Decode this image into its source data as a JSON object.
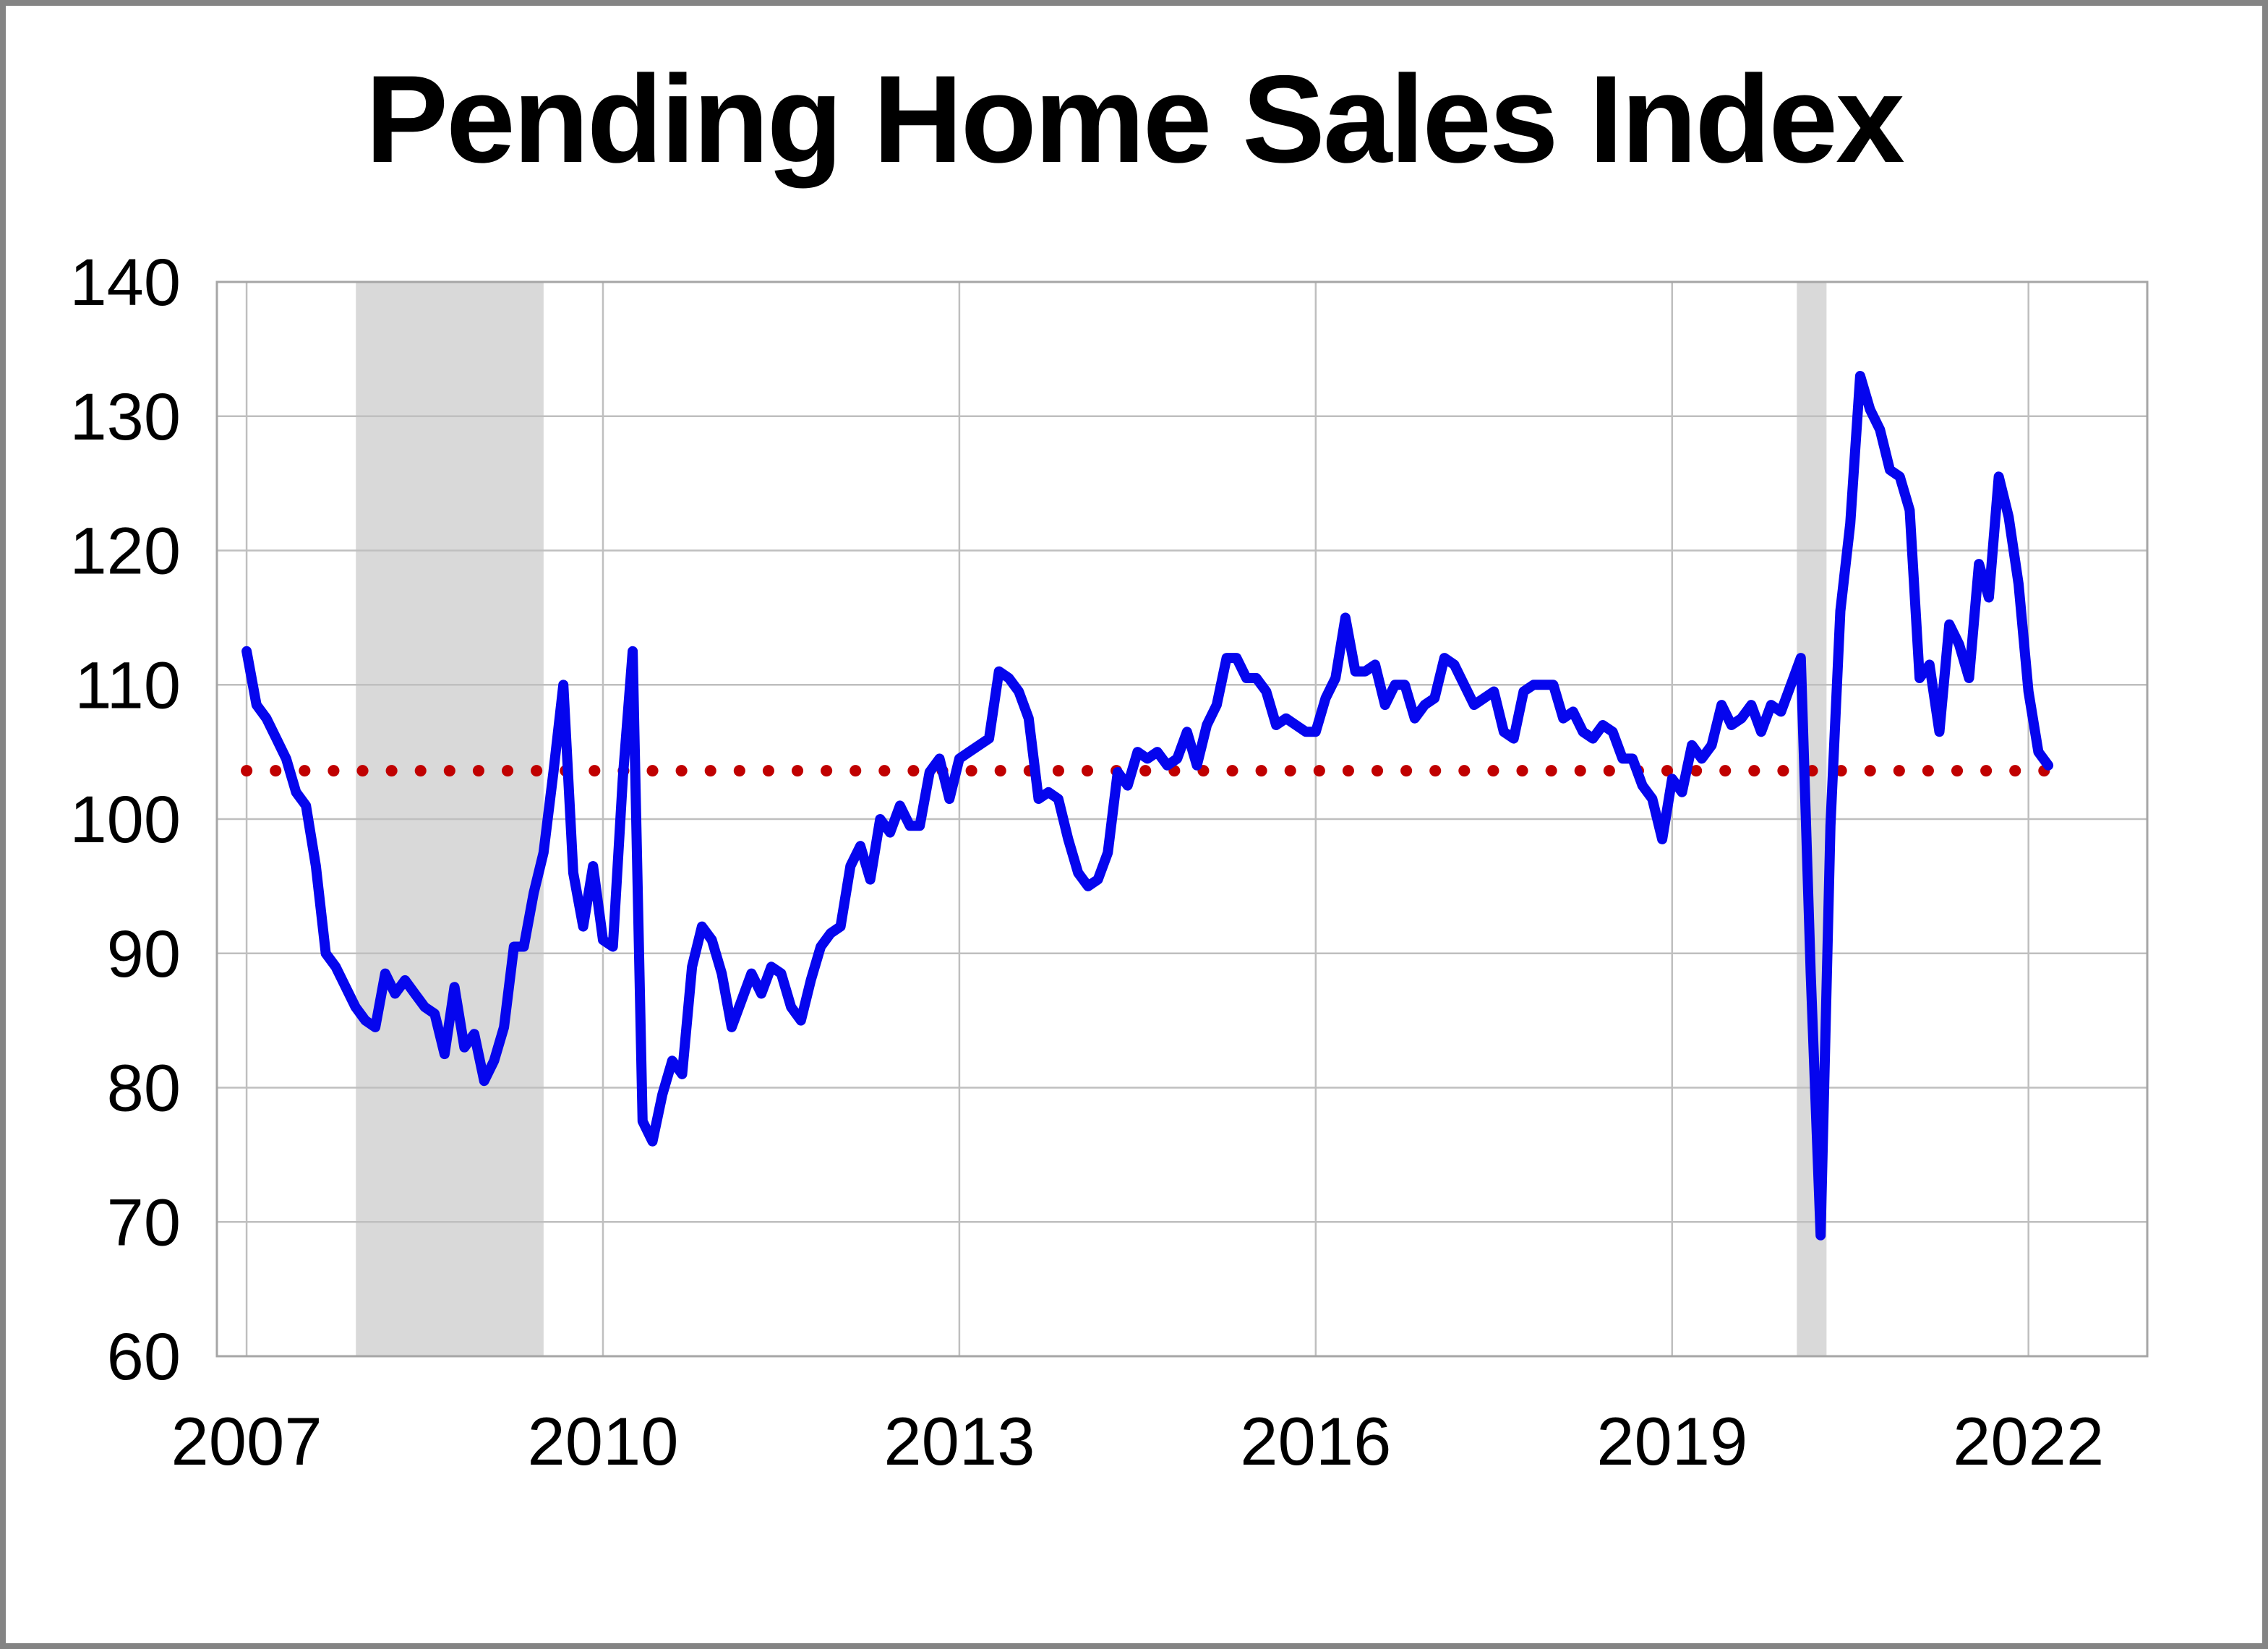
{
  "page": {
    "background_color": "#ffffff",
    "frame_border_color": "#848484"
  },
  "chart_data": {
    "type": "line",
    "title": "Pending Home Sales Index",
    "x_start": {
      "year": 2007,
      "month": 1
    },
    "x_end": {
      "year": 2022,
      "month": 3
    },
    "xlim": [
      2006.75,
      2023.0
    ],
    "ylim": [
      60,
      140
    ],
    "y_ticks": [
      60,
      70,
      80,
      90,
      100,
      110,
      120,
      130,
      140
    ],
    "x_ticks": [
      2007,
      2010,
      2013,
      2016,
      2019,
      2022
    ],
    "grid": true,
    "legend_position": "none",
    "average_line": {
      "value": 103.6,
      "x_from": 2007.0,
      "x_to": 2022.25,
      "style": "dotted"
    },
    "recession_bands": [
      {
        "start": 2007.92,
        "end": 2009.5
      },
      {
        "start": 2020.05,
        "end": 2020.3
      }
    ],
    "colors": {
      "series_line": "#0505ee",
      "average_dots": "#c00000",
      "recession_band": "#d9d9d9",
      "gridline": "#bfbfbf",
      "plot_border": "#a6a6a6",
      "axis_text": "#000000",
      "title_text": "#000000"
    },
    "series": [
      {
        "name": "Pending Home Sales Index (monthly)",
        "color": "#0505ee",
        "values": [
          112.5,
          108.5,
          107.5,
          106,
          104.5,
          102,
          101,
          96.5,
          90,
          89,
          87.5,
          86,
          85,
          84.5,
          88.5,
          87,
          88,
          87,
          86,
          85.5,
          82.5,
          87.5,
          83,
          84,
          80.5,
          82,
          84.5,
          90.5,
          90.5,
          94.5,
          97.5,
          103.5,
          110,
          96,
          92,
          96.5,
          91,
          90.5,
          103,
          112.5,
          77.5,
          76,
          79.5,
          82,
          81,
          89,
          92,
          91,
          88.5,
          84.5,
          86.5,
          88.5,
          87,
          89,
          88.5,
          86,
          85,
          88,
          90.5,
          91.5,
          92,
          96.5,
          98,
          95.5,
          100,
          99,
          101,
          99.5,
          99.5,
          103.5,
          104.5,
          101.5,
          104.5,
          105,
          105.5,
          106,
          111,
          110.5,
          109.5,
          107.5,
          101.5,
          102,
          101.5,
          98.5,
          96,
          95,
          95.5,
          97.5,
          103.5,
          102.5,
          105,
          104.5,
          105,
          104,
          104.5,
          106.5,
          104,
          107,
          108.5,
          112,
          112,
          110.5,
          110.5,
          109.5,
          107,
          107.5,
          107,
          106.5,
          106.5,
          109,
          110.5,
          115,
          111,
          111,
          111.5,
          108.5,
          110,
          110,
          107.5,
          108.5,
          109,
          112,
          111.5,
          110,
          108.5,
          109,
          109.5,
          106.5,
          106,
          109.5,
          110,
          110,
          110,
          107.5,
          108,
          106.5,
          106,
          107,
          106.5,
          104.5,
          104.5,
          102.5,
          101.5,
          98.5,
          103,
          102,
          105.5,
          104.5,
          105.5,
          108.5,
          107,
          107.5,
          108.5,
          106.5,
          108.5,
          108,
          110,
          112,
          88.5,
          69,
          99.5,
          115.5,
          122,
          133,
          130.5,
          129,
          126,
          125.5,
          123,
          110.5,
          111.5,
          106.5,
          114.5,
          113,
          110.5,
          119,
          116.5,
          125.5,
          122.5,
          117.5,
          109.5,
          105,
          104
        ]
      }
    ]
  }
}
